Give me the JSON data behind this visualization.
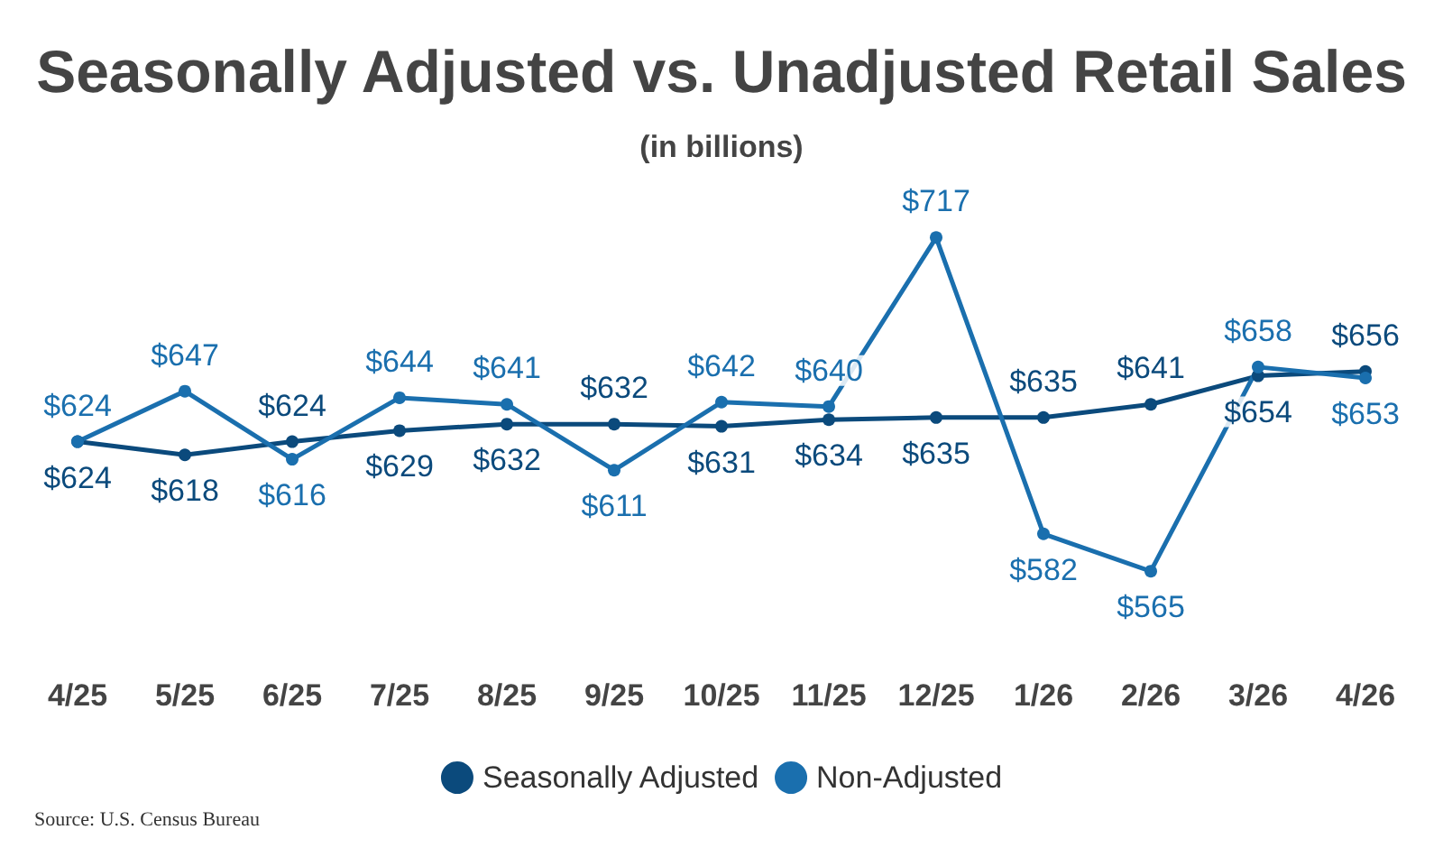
{
  "chart_data": {
    "type": "line",
    "title": "Seasonally Adjusted vs. Unadjusted Retail Sales",
    "subtitle": "(in billions)",
    "categories": [
      "4/25",
      "5/25",
      "6/25",
      "7/25",
      "8/25",
      "9/25",
      "10/25",
      "11/25",
      "12/25",
      "1/26",
      "2/26",
      "3/26",
      "4/26"
    ],
    "series": [
      {
        "name": "Seasonally Adjusted",
        "color": "#0b4a7c",
        "values": [
          624,
          618,
          624,
          629,
          632,
          632,
          631,
          634,
          635,
          635,
          641,
          654,
          656
        ],
        "value_labels": [
          "$624",
          "$618",
          "$624",
          "$629",
          "$632",
          "$632",
          "$631",
          "$634",
          "$635",
          "$635",
          "$641",
          "$654",
          "$656"
        ]
      },
      {
        "name": "Non-Adjusted",
        "color": "#1a6fae",
        "values": [
          624,
          647,
          616,
          644,
          641,
          611,
          642,
          640,
          717,
          582,
          565,
          658,
          653
        ],
        "value_labels": [
          "$624",
          "$647",
          "$616",
          "$644",
          "$641",
          "$611",
          "$642",
          "$640",
          "$717",
          "$582",
          "$565",
          "$658",
          "$653"
        ]
      }
    ],
    "legend": "bottom",
    "grid": false,
    "marker": "circle",
    "line_style": "solid",
    "annotations": [
      "Source: U.S. Census Bureau"
    ]
  }
}
